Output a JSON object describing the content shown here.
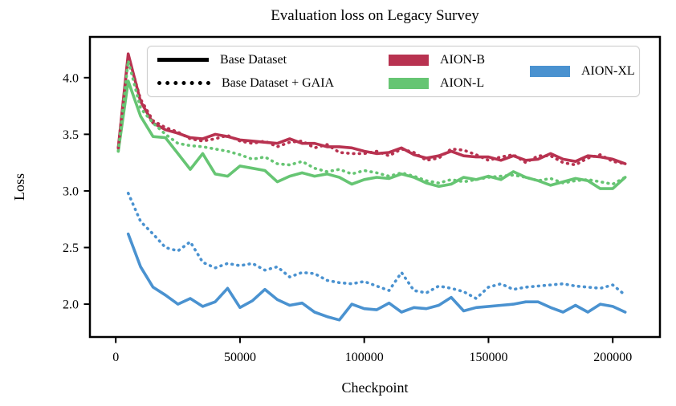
{
  "title": "Evaluation loss on Legacy Survey",
  "axes": {
    "xlabel": "Checkpoint",
    "ylabel": "Loss"
  },
  "colors": {
    "aion_b": "#b83250",
    "aion_l": "#66c573",
    "aion_xl": "#4a92d0",
    "axis": "#000000",
    "legend_border": "#cfcfcf"
  },
  "legend": {
    "style_entries": [
      {
        "label": "Base Dataset",
        "style": "solid"
      },
      {
        "label": "Base Dataset + GAIA",
        "style": "dotted"
      }
    ],
    "model_entries": [
      {
        "label": "AION-B",
        "color": "#b83250",
        "column": 2
      },
      {
        "label": "AION-L",
        "color": "#66c573",
        "column": 2
      },
      {
        "label": "AION-XL",
        "color": "#4a92d0",
        "column": 3
      }
    ]
  },
  "chart_data": {
    "type": "line",
    "title": "Evaluation loss on Legacy Survey",
    "xlabel": "Checkpoint",
    "ylabel": "Loss",
    "xlim": [
      -10400,
      219000
    ],
    "ylim": [
      1.71,
      4.36
    ],
    "grid": false,
    "legend_position": "upper center",
    "x_tick_values": [
      0,
      50000,
      100000,
      150000,
      200000
    ],
    "x_tick_labels": [
      "0",
      "50000",
      "100000",
      "150000",
      "200000"
    ],
    "y_tick_values": [
      2.0,
      2.5,
      3.0,
      3.5,
      4.0
    ],
    "y_tick_labels": [
      "2.0",
      "2.5",
      "3.0",
      "3.5",
      "4.0"
    ],
    "x": [
      1000,
      5000,
      10000,
      15000,
      20000,
      25000,
      30000,
      35000,
      40000,
      45000,
      50000,
      55000,
      60000,
      65000,
      70000,
      75000,
      80000,
      85000,
      90000,
      95000,
      100000,
      105000,
      110000,
      115000,
      120000,
      125000,
      130000,
      135000,
      140000,
      145000,
      150000,
      155000,
      160000,
      165000,
      170000,
      175000,
      180000,
      185000,
      190000,
      195000,
      200000,
      205000
    ],
    "series": [
      {
        "name": "AION-B Base Dataset",
        "model": "AION-B",
        "dataset": "Base Dataset",
        "style": "solid",
        "color": "#b83250",
        "values": [
          3.38,
          4.21,
          3.79,
          3.6,
          3.54,
          3.51,
          3.47,
          3.46,
          3.5,
          3.48,
          3.45,
          3.44,
          3.43,
          3.42,
          3.46,
          3.42,
          3.42,
          3.39,
          3.39,
          3.38,
          3.35,
          3.33,
          3.34,
          3.38,
          3.32,
          3.29,
          3.31,
          3.35,
          3.31,
          3.3,
          3.3,
          3.27,
          3.31,
          3.27,
          3.28,
          3.33,
          3.28,
          3.26,
          3.31,
          3.3,
          3.28,
          3.24
        ]
      },
      {
        "name": "AION-L Base Dataset",
        "model": "AION-L",
        "dataset": "Base Dataset",
        "style": "solid",
        "color": "#66c573",
        "values": [
          3.35,
          3.97,
          3.66,
          3.48,
          3.47,
          3.33,
          3.19,
          3.33,
          3.15,
          3.13,
          3.22,
          3.2,
          3.18,
          3.08,
          3.13,
          3.16,
          3.13,
          3.15,
          3.12,
          3.06,
          3.1,
          3.12,
          3.11,
          3.15,
          3.12,
          3.07,
          3.04,
          3.06,
          3.12,
          3.1,
          3.13,
          3.1,
          3.17,
          3.12,
          3.09,
          3.05,
          3.08,
          3.11,
          3.09,
          3.02,
          3.02,
          3.12
        ]
      },
      {
        "name": "AION-XL Base Dataset",
        "model": "AION-XL",
        "dataset": "Base Dataset",
        "style": "solid",
        "color": "#4a92d0",
        "values": [
          null,
          2.62,
          2.33,
          2.15,
          2.08,
          2.0,
          2.05,
          1.98,
          2.02,
          2.14,
          1.97,
          2.03,
          2.13,
          2.04,
          1.99,
          2.01,
          1.93,
          1.89,
          1.86,
          2.0,
          1.96,
          1.95,
          2.01,
          1.93,
          1.97,
          1.96,
          1.99,
          2.06,
          1.94,
          1.97,
          1.98,
          1.99,
          2.0,
          2.02,
          2.02,
          1.97,
          1.93,
          1.99,
          1.93,
          2.0,
          1.98,
          1.93
        ]
      },
      {
        "name": "AION-B Base Dataset + GAIA",
        "model": "AION-B",
        "dataset": "Base Dataset + GAIA",
        "style": "dotted",
        "color": "#b83250",
        "values": [
          3.38,
          4.19,
          3.81,
          3.62,
          3.56,
          3.52,
          3.46,
          3.44,
          3.46,
          3.49,
          3.44,
          3.42,
          3.44,
          3.39,
          3.43,
          3.44,
          3.38,
          3.41,
          3.34,
          3.33,
          3.33,
          3.35,
          3.31,
          3.37,
          3.34,
          3.27,
          3.29,
          3.37,
          3.36,
          3.32,
          3.27,
          3.3,
          3.32,
          3.25,
          3.31,
          3.31,
          3.25,
          3.23,
          3.29,
          3.32,
          3.26,
          3.24
        ]
      },
      {
        "name": "AION-L Base Dataset + GAIA",
        "model": "AION-L",
        "dataset": "Base Dataset + GAIA",
        "style": "dotted",
        "color": "#66c573",
        "values": [
          3.35,
          4.15,
          3.73,
          3.6,
          3.5,
          3.42,
          3.4,
          3.39,
          3.37,
          3.35,
          3.32,
          3.28,
          3.3,
          3.24,
          3.23,
          3.26,
          3.2,
          3.17,
          3.19,
          3.15,
          3.18,
          3.16,
          3.13,
          3.16,
          3.13,
          3.09,
          3.07,
          3.1,
          3.08,
          3.1,
          3.12,
          3.13,
          3.14,
          3.12,
          3.09,
          3.11,
          3.07,
          3.09,
          3.1,
          3.08,
          3.06,
          3.12
        ]
      },
      {
        "name": "AION-XL Base Dataset + GAIA",
        "model": "AION-XL",
        "dataset": "Base Dataset + GAIA",
        "style": "dotted",
        "color": "#4a92d0",
        "values": [
          null,
          2.98,
          2.73,
          2.62,
          2.5,
          2.47,
          2.55,
          2.37,
          2.32,
          2.36,
          2.34,
          2.36,
          2.3,
          2.33,
          2.24,
          2.28,
          2.27,
          2.21,
          2.19,
          2.18,
          2.2,
          2.16,
          2.12,
          2.28,
          2.12,
          2.1,
          2.16,
          2.14,
          2.11,
          2.05,
          2.15,
          2.18,
          2.13,
          2.15,
          2.16,
          2.17,
          2.18,
          2.16,
          2.15,
          2.14,
          2.17,
          2.08
        ]
      }
    ]
  }
}
